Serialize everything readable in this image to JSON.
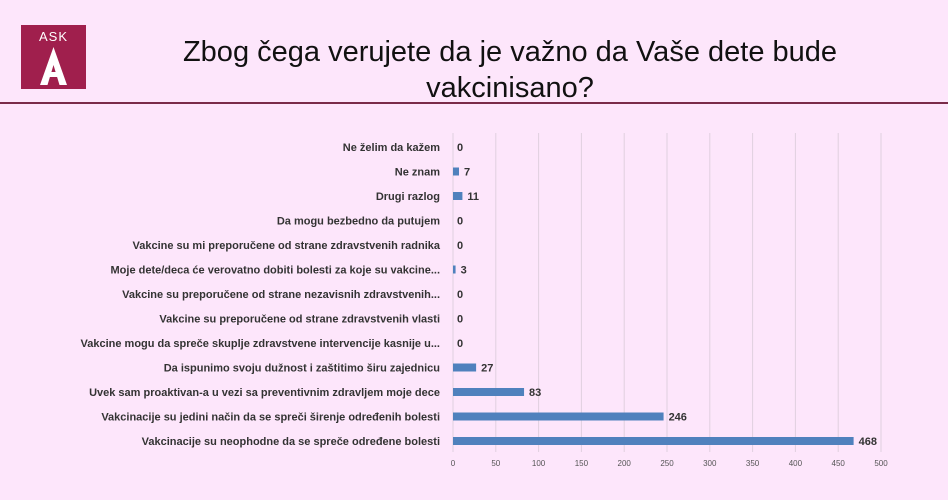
{
  "logo": {
    "text": "ASK",
    "brand_color": "#a01f4d"
  },
  "header": {
    "title_line1": "Zbog čega verujete da je važno da Vaše dete bude",
    "title_line2": "vakcinisano?"
  },
  "chart_data": {
    "type": "bar",
    "orientation": "horizontal",
    "categories": [
      "Ne želim da kažem",
      "Ne znam",
      "Drugi razlog",
      "Da mogu bezbedno da putujem",
      "Vakcine su mi preporučene od strane zdravstvenih radnika",
      "Moje dete/deca će verovatno dobiti bolesti za koje su vakcine...",
      "Vakcine su preporučene od strane nezavisnih zdravstvenih...",
      "Vakcine su preporučene od strane zdravstvenih vlasti",
      "Vakcine mogu da spreče skuplje zdravstvene intervencije kasnije u...",
      "Da ispunimo svoju dužnost i zaštitimo širu zajednicu",
      "Uvek sam proaktivan-a u vezi sa preventivnim zdravljem moje dece",
      "Vakcinacije su jedini način da se spreči širenje određenih bolesti",
      "Vakcinacije su neophodne da se spreče određene bolesti"
    ],
    "values": [
      0,
      7,
      11,
      0,
      0,
      3,
      0,
      0,
      0,
      27,
      83,
      246,
      468
    ],
    "value_labels": [
      "0",
      "7",
      "11",
      "0",
      "0",
      "3",
      "0",
      "0",
      "0",
      "27",
      "83",
      "246",
      "468"
    ],
    "xlim": [
      0,
      500
    ],
    "ticks": [
      "0",
      "50",
      "100",
      "150",
      "200",
      "250",
      "300",
      "350",
      "400",
      "450",
      "500"
    ],
    "grid": true,
    "bar_color": "#4f81bd",
    "grid_color": "#e0d0df"
  }
}
